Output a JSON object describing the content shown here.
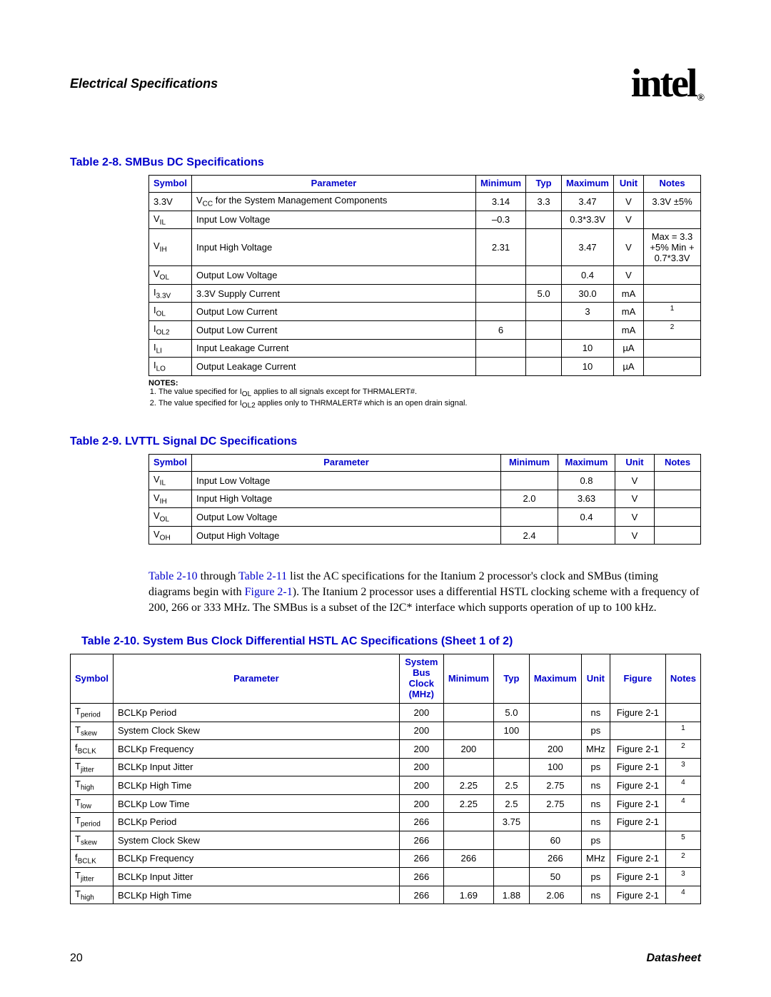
{
  "header": {
    "section": "Electrical Specifications",
    "logo_text": "intel",
    "logo_mark": "®"
  },
  "colors": {
    "link": "#0000cc",
    "text": "#000000",
    "border": "#000000",
    "background": "#ffffff"
  },
  "table8": {
    "caption": "Table 2-8. SMBus DC Specifications",
    "headers": [
      "Symbol",
      "Parameter",
      "Minimum",
      "Typ",
      "Maximum",
      "Unit",
      "Notes"
    ],
    "rows": [
      {
        "sym": "3.3V",
        "sub": "",
        "param_pre": "V",
        "param_sub": "CC",
        "param_post": " for the System Management Components",
        "min": "3.14",
        "typ": "3.3",
        "max": "3.47",
        "unit": "V",
        "notes": "3.3V ±5%"
      },
      {
        "sym": "V",
        "sub": "IL",
        "param": "Input Low Voltage",
        "min": "–0.3",
        "typ": "",
        "max": "0.3*3.3V",
        "unit": "V",
        "notes": ""
      },
      {
        "sym": "V",
        "sub": "IH",
        "param": "Input High Voltage",
        "min": "2.31",
        "typ": "",
        "max": "3.47",
        "unit": "V",
        "notes": "Max = 3.3 +5% Min + 0.7*3.3V"
      },
      {
        "sym": "V",
        "sub": "OL",
        "param": "Output Low Voltage",
        "min": "",
        "typ": "",
        "max": "0.4",
        "unit": "V",
        "notes": ""
      },
      {
        "sym": "I",
        "sub": "3.3V",
        "param": "3.3V Supply Current",
        "min": "",
        "typ": "5.0",
        "max": "30.0",
        "unit": "mA",
        "notes": ""
      },
      {
        "sym": "I",
        "sub": "OL",
        "param": "Output Low Current",
        "min": "",
        "typ": "",
        "max": "3",
        "unit": "mA",
        "notes": "1"
      },
      {
        "sym": "I",
        "sub": "OL2",
        "param": "Output Low Current",
        "min": "6",
        "typ": "",
        "max": "",
        "unit": "mA",
        "notes": "2"
      },
      {
        "sym": "I",
        "sub": "LI",
        "param": "Input Leakage Current",
        "min": "",
        "typ": "",
        "max": "10",
        "unit": "µA",
        "notes": ""
      },
      {
        "sym": "I",
        "sub": "LO",
        "param": "Output Leakage Current",
        "min": "",
        "typ": "",
        "max": "10",
        "unit": "µA",
        "notes": ""
      }
    ],
    "notes_label": "NOTES:",
    "notes": [
      "The value specified for I_OL applies to all signals except for THRMALERT#.",
      "The value specified for I_OL2 applies only to THRMALERT# which is an open drain signal."
    ],
    "col_widths": [
      "60px",
      "auto",
      "70px",
      "50px",
      "72px",
      "42px",
      "80px"
    ]
  },
  "table9": {
    "caption": "Table 2-9. LVTTL Signal DC Specifications",
    "headers": [
      "Symbol",
      "Parameter",
      "Minimum",
      "Maximum",
      "Unit",
      "Notes"
    ],
    "rows": [
      {
        "sym": "V",
        "sub": "IL",
        "param": "Input Low Voltage",
        "min": "",
        "max": "0.8",
        "unit": "V",
        "notes": ""
      },
      {
        "sym": "V",
        "sub": "IH",
        "param": "Input High Voltage",
        "min": "2.0",
        "max": "3.63",
        "unit": "V",
        "notes": ""
      },
      {
        "sym": "V",
        "sub": "OL",
        "param": "Output Low Voltage",
        "min": "",
        "max": "0.4",
        "unit": "V",
        "notes": ""
      },
      {
        "sym": "V",
        "sub": "OH",
        "param": "Output High Voltage",
        "min": "2.4",
        "max": "",
        "unit": "V",
        "notes": ""
      }
    ],
    "col_widths": [
      "60px",
      "auto",
      "80px",
      "80px",
      "55px",
      "65px"
    ]
  },
  "paragraph": {
    "t1": "Table 2-10",
    "mid1": " through ",
    "t2": "Table 2-11",
    "mid2": " list the AC specifications for the Itanium 2 processor's clock and SMBus (timing diagrams begin with ",
    "f1": "Figure 2-1",
    "mid3": "). The Itanium 2 processor uses a differential HSTL clocking scheme with a frequency of 200, 266 or 333 MHz. The SMBus is a subset of the I2C* interface which supports operation of up to 100 kHz."
  },
  "table10": {
    "caption": "Table 2-10. System Bus Clock Differential HSTL AC Specifications (Sheet 1 of 2)",
    "headers": [
      "Symbol",
      "Parameter",
      "System Bus Clock (MHz)",
      "Minimum",
      "Typ",
      "Maximum",
      "Unit",
      "Figure",
      "Notes"
    ],
    "rows": [
      {
        "sym": "T",
        "sub": "period",
        "param": "BCLKp Period",
        "sbc": "200",
        "min": "",
        "typ": "5.0",
        "max": "",
        "unit": "ns",
        "fig": "Figure 2-1",
        "notes": ""
      },
      {
        "sym": "T",
        "sub": "skew",
        "param": "System Clock Skew",
        "sbc": "200",
        "min": "",
        "typ": "100",
        "max": "",
        "unit": "ps",
        "fig": "",
        "notes": "1"
      },
      {
        "sym": "f",
        "sub": "BCLK",
        "param": "BCLKp Frequency",
        "sbc": "200",
        "min": "200",
        "typ": "",
        "max": "200",
        "unit": "MHz",
        "fig": "Figure 2-1",
        "notes": "2"
      },
      {
        "sym": "T",
        "sub": "jitter",
        "param": "BCLKp Input Jitter",
        "sbc": "200",
        "min": "",
        "typ": "",
        "max": "100",
        "unit": "ps",
        "fig": "Figure 2-1",
        "notes": "3"
      },
      {
        "sym": "T",
        "sub": "high",
        "param": "BCLKp High Time",
        "sbc": "200",
        "min": "2.25",
        "typ": "2.5",
        "max": "2.75",
        "unit": "ns",
        "fig": "Figure 2-1",
        "notes": "4"
      },
      {
        "sym": "T",
        "sub": "low",
        "param": "BCLKp Low Time",
        "sbc": "200",
        "min": "2.25",
        "typ": "2.5",
        "max": "2.75",
        "unit": "ns",
        "fig": "Figure 2-1",
        "notes": "4"
      },
      {
        "sym": "T",
        "sub": "period",
        "param": "BCLKp Period",
        "sbc": "266",
        "min": "",
        "typ": "3.75",
        "max": "",
        "unit": "ns",
        "fig": "Figure 2-1",
        "notes": ""
      },
      {
        "sym": "T",
        "sub": "skew",
        "param": "System Clock Skew",
        "sbc": "266",
        "min": "",
        "typ": "",
        "max": "60",
        "unit": "ps",
        "fig": "",
        "notes": "5"
      },
      {
        "sym": "f",
        "sub": "BCLK",
        "param": "BCLKp Frequency",
        "sbc": "266",
        "min": "266",
        "typ": "",
        "max": "266",
        "unit": "MHz",
        "fig": "Figure 2-1",
        "notes": "2"
      },
      {
        "sym": "T",
        "sub": "jitter",
        "param": "BCLKp Input Jitter",
        "sbc": "266",
        "min": "",
        "typ": "",
        "max": "50",
        "unit": "ps",
        "fig": "Figure 2-1",
        "notes": "3"
      },
      {
        "sym": "T",
        "sub": "high",
        "param": "BCLKp High Time",
        "sbc": "266",
        "min": "1.69",
        "typ": "1.88",
        "max": "2.06",
        "unit": "ns",
        "fig": "Figure 2-1",
        "notes": "4"
      }
    ],
    "col_widths": [
      "60px",
      "auto",
      "62px",
      "65px",
      "50px",
      "65px",
      "40px",
      "78px",
      "45px"
    ]
  },
  "footer": {
    "page": "20",
    "doc": "Datasheet"
  }
}
